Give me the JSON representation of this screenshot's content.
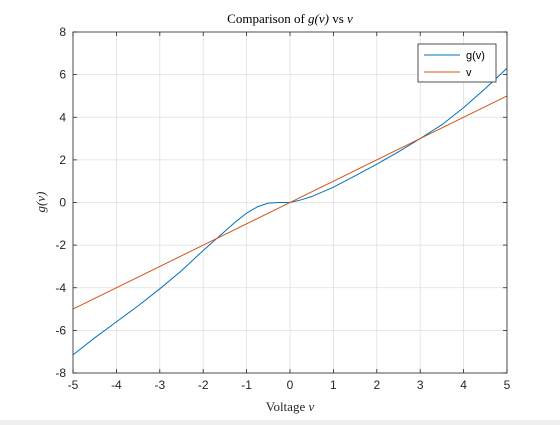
{
  "chart_data": {
    "type": "line",
    "title_parts": [
      "Comparison of ",
      "g(v)",
      " vs ",
      "v"
    ],
    "xlabel_parts": [
      "Voltage ",
      "v"
    ],
    "ylabel": "g(v)",
    "xlim": [
      -5,
      5
    ],
    "ylim": [
      -8,
      8
    ],
    "xticks": [
      "-5",
      "-4",
      "-3",
      "-2",
      "-1",
      "0",
      "1",
      "2",
      "3",
      "4",
      "5"
    ],
    "yticks": [
      "-8",
      "-6",
      "-4",
      "-2",
      "0",
      "2",
      "4",
      "6",
      "8"
    ],
    "grid": true,
    "legend_position": "top-right",
    "series": [
      {
        "name": "g(v)",
        "color": "#0072BD",
        "x": [
          -5,
          -4.5,
          -4,
          -3.5,
          -3,
          -2.5,
          -2,
          -1.75,
          -1.5,
          -1.25,
          -1,
          -0.75,
          -0.5,
          -0.25,
          0,
          0.25,
          0.5,
          1,
          1.5,
          2,
          2.5,
          3,
          3.5,
          4,
          4.5,
          5
        ],
        "y": [
          -7.15,
          -6.35,
          -5.6,
          -4.85,
          -4.05,
          -3.2,
          -2.25,
          -1.8,
          -1.35,
          -0.9,
          -0.5,
          -0.2,
          -0.03,
          0,
          0,
          0.12,
          0.28,
          0.72,
          1.25,
          1.8,
          2.38,
          3.0,
          3.65,
          4.45,
          5.35,
          6.3
        ]
      },
      {
        "name": "v",
        "color": "#D95319",
        "x": [
          -5,
          5
        ],
        "y": [
          -5,
          5
        ]
      }
    ]
  }
}
